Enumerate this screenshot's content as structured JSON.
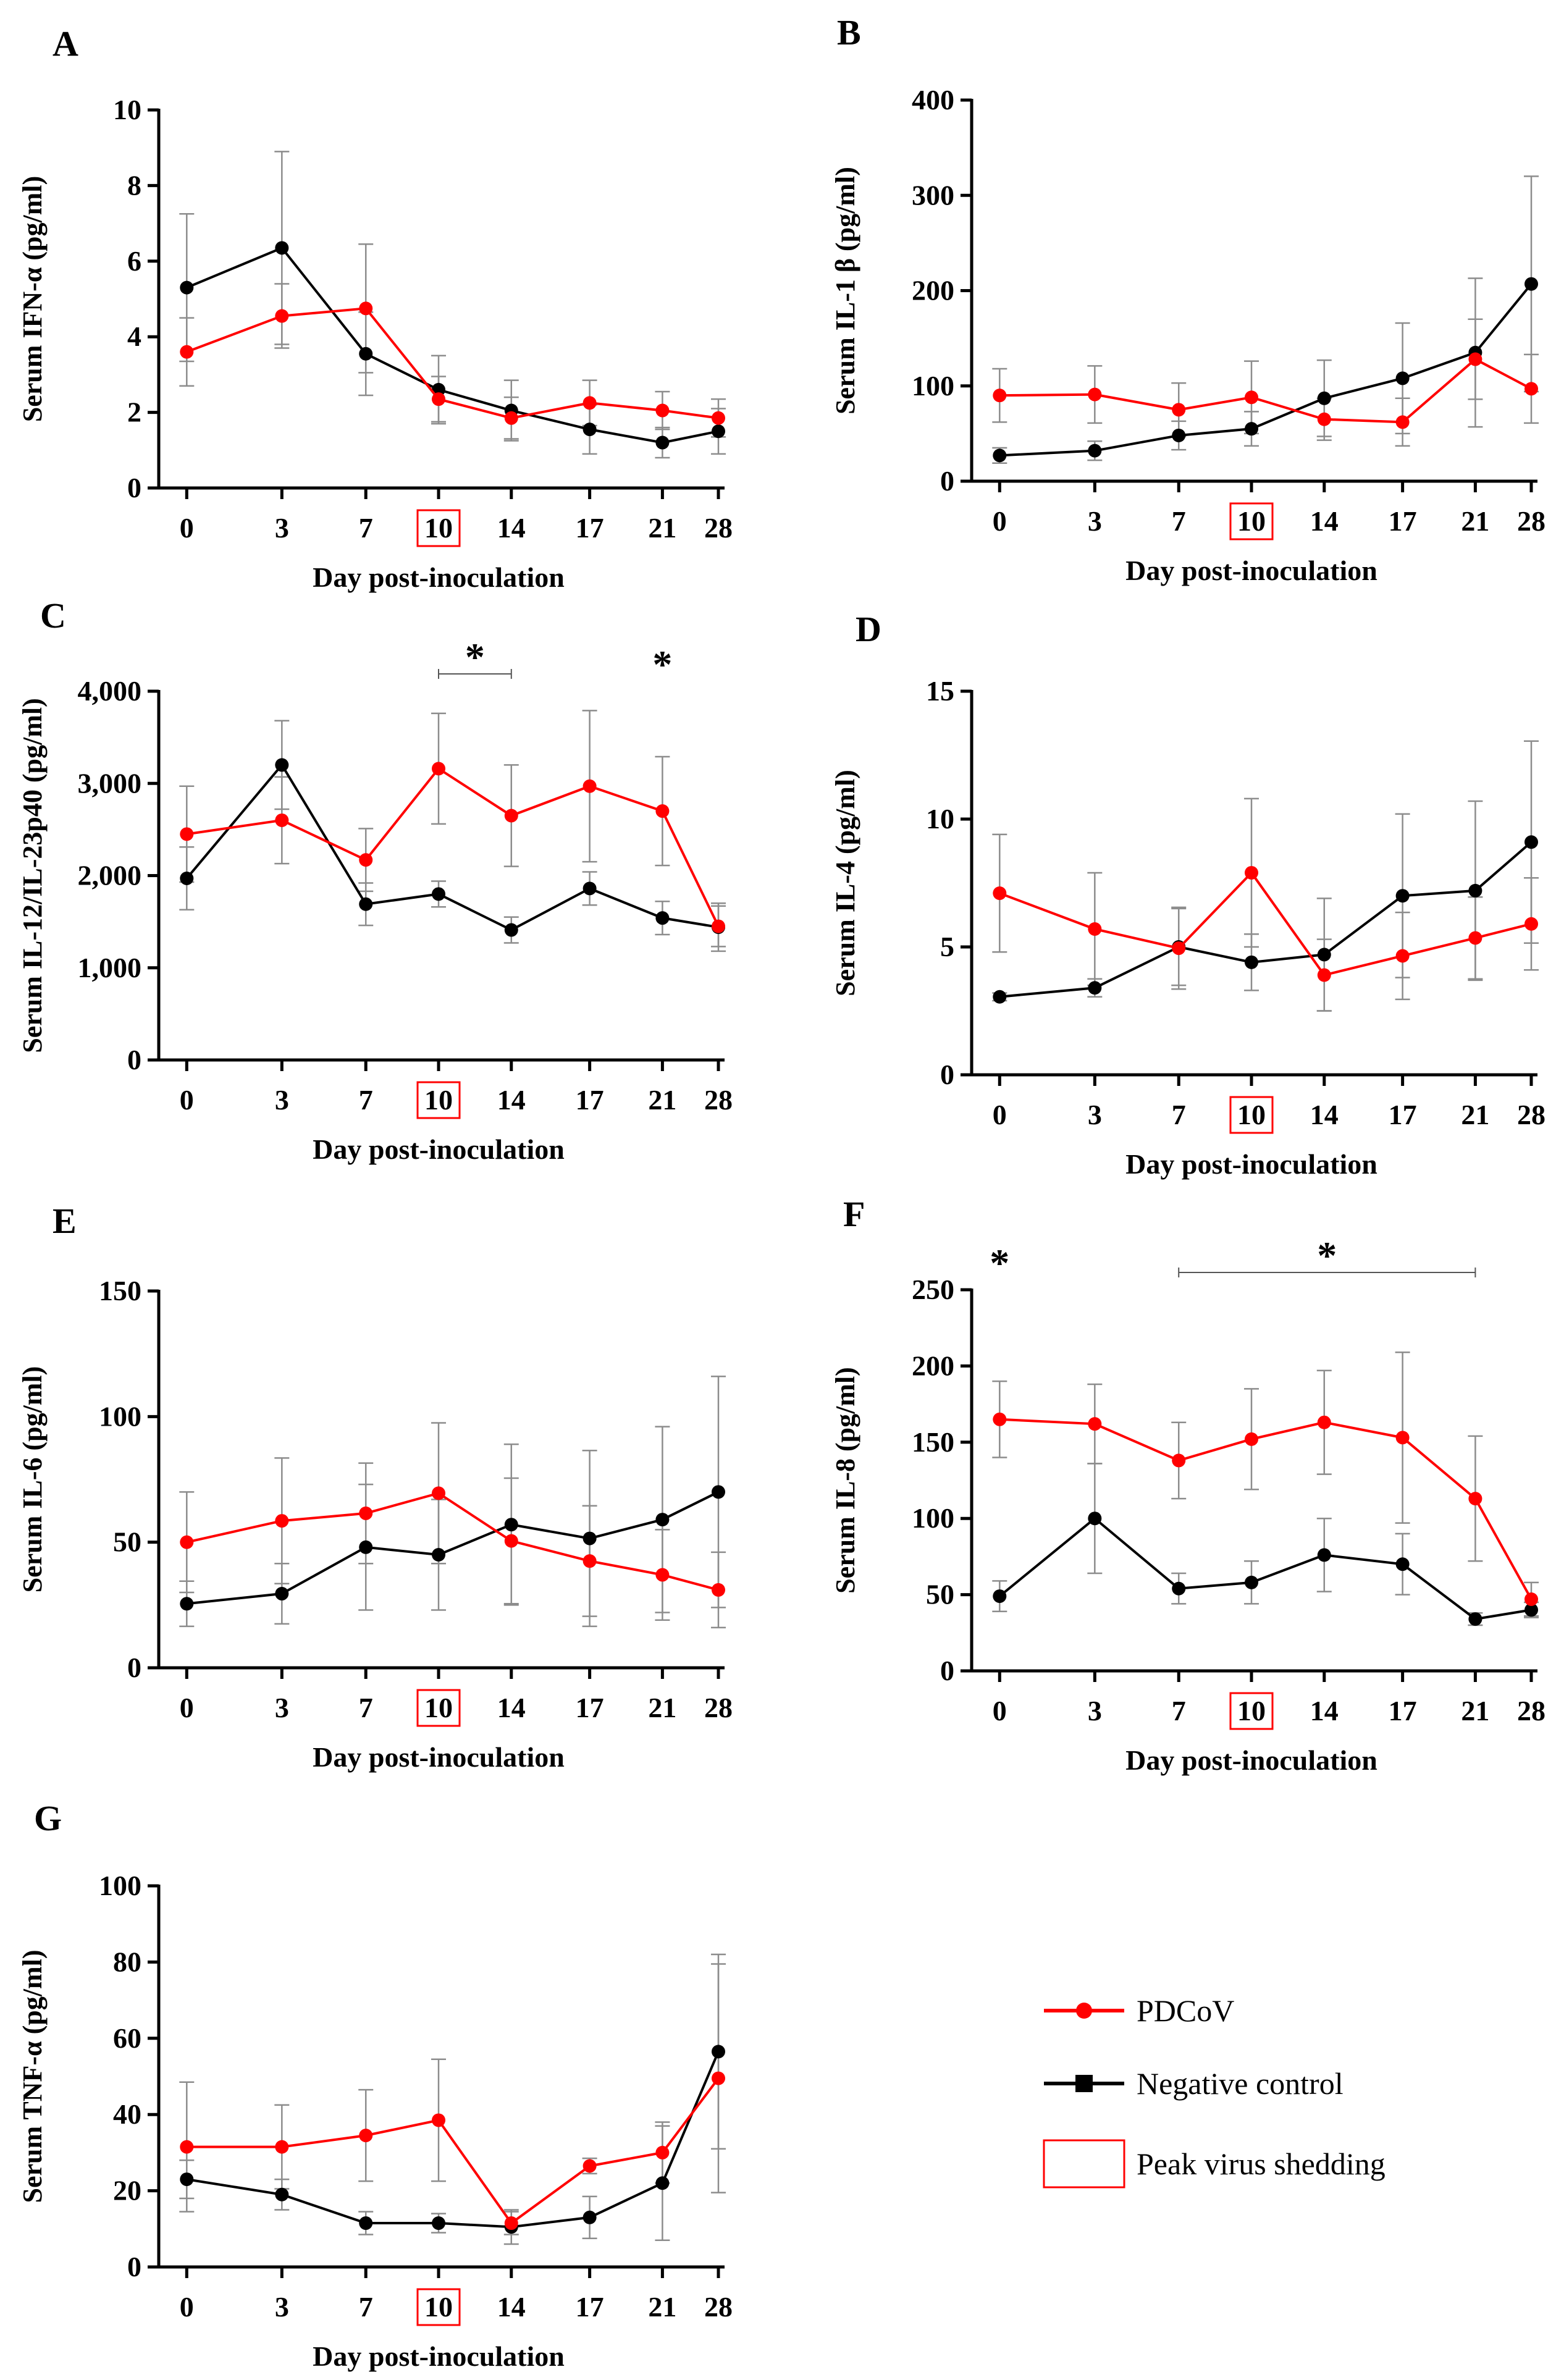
{
  "figure": {
    "colors": {
      "pdcov": "#ff0000",
      "control": "#000000",
      "errorbar": "#8c8c8c",
      "highlight": "#ff0000"
    },
    "x_label": "Day post-inoculation",
    "categories": [
      "0",
      "3",
      "7",
      "10",
      "14",
      "17",
      "21",
      "28"
    ],
    "peak_day": "10",
    "legend": [
      {
        "name": "PDCoV",
        "style": "red-circle-line"
      },
      {
        "name": "Negative control",
        "style": "black-square-line"
      },
      {
        "name": "Peak virus shedding",
        "style": "red-box"
      }
    ]
  },
  "chart_data": [
    {
      "panel": "A",
      "type": "line",
      "ylabel": "Serum IFN-α (pg/ml)",
      "ylim": [
        0,
        10
      ],
      "yticks": [
        "0",
        "2",
        "4",
        "6",
        "8",
        "10"
      ],
      "series": [
        {
          "name": "PDCoV",
          "values": [
            3.6,
            4.55,
            4.75,
            2.35,
            1.85,
            2.25,
            2.05,
            1.85
          ],
          "errors": [
            0.9,
            0.85,
            1.7,
            0.6,
            0.55,
            0.6,
            0.5,
            0.5
          ]
        },
        {
          "name": "Negative control",
          "values": [
            5.3,
            6.35,
            3.55,
            2.6,
            2.05,
            1.55,
            1.2,
            1.5
          ],
          "errors": [
            1.95,
            2.55,
            1.1,
            0.9,
            0.8,
            0.65,
            0.4,
            0.6
          ]
        }
      ],
      "significance": []
    },
    {
      "panel": "B",
      "type": "line",
      "ylabel": "Serum IL-1 β (pg/ml)",
      "ylim": [
        0,
        400
      ],
      "yticks": [
        "0",
        "100",
        "200",
        "300",
        "400"
      ],
      "series": [
        {
          "name": "PDCoV",
          "values": [
            90,
            91,
            75,
            88,
            65,
            62,
            128,
            97
          ],
          "errors": [
            28,
            30,
            28,
            38,
            22,
            25,
            42,
            36
          ]
        },
        {
          "name": "Negative control",
          "values": [
            27,
            32,
            48,
            55,
            87,
            108,
            135,
            207
          ],
          "errors": [
            8,
            10,
            15,
            18,
            40,
            58,
            78,
            113
          ]
        }
      ],
      "significance": []
    },
    {
      "panel": "C",
      "type": "line",
      "ylabel": "Serum IL-12/IL-23p40 (pg/ml)",
      "ylim": [
        0,
        4000
      ],
      "yticks": [
        "0",
        "1,000",
        "2,000",
        "3,000",
        "4,000"
      ],
      "series": [
        {
          "name": "PDCoV",
          "values": [
            2450,
            2600,
            2170,
            3160,
            2650,
            2970,
            2700,
            1450
          ],
          "errors": [
            520,
            470,
            340,
            600,
            550,
            820,
            590,
            220
          ]
        },
        {
          "name": "Negative control",
          "values": [
            1970,
            3200,
            1690,
            1800,
            1410,
            1860,
            1540,
            1440
          ],
          "errors": [
            340,
            480,
            230,
            140,
            140,
            180,
            180,
            260
          ]
        }
      ],
      "significance": [
        {
          "label": "*",
          "from": "10",
          "to": "14"
        },
        {
          "label": "*",
          "at": "21"
        }
      ]
    },
    {
      "panel": "D",
      "type": "line",
      "ylabel": "Serum IL-4 (pg/ml)",
      "ylim": [
        0,
        15
      ],
      "yticks": [
        "0",
        "5",
        "10",
        "15"
      ],
      "series": [
        {
          "name": "PDCoV",
          "values": [
            7.1,
            5.7,
            4.95,
            7.9,
            3.9,
            4.65,
            5.35,
            5.9
          ],
          "errors": [
            2.3,
            2.2,
            1.6,
            2.9,
            1.4,
            1.7,
            1.6,
            1.8
          ]
        },
        {
          "name": "Negative control",
          "values": [
            3.05,
            3.4,
            5.0,
            4.4,
            4.7,
            7.0,
            7.2,
            9.1
          ],
          "errors": [
            0.15,
            0.35,
            1.5,
            1.1,
            2.2,
            3.2,
            3.5,
            3.95
          ]
        }
      ],
      "significance": []
    },
    {
      "panel": "E",
      "type": "line",
      "ylabel": "Serum IL-6 (pg/ml)",
      "ylim": [
        0,
        150
      ],
      "yticks": [
        "0",
        "50",
        "100",
        "150"
      ],
      "series": [
        {
          "name": "PDCoV",
          "values": [
            50,
            58.5,
            61.5,
            69.5,
            50.5,
            42.5,
            37,
            31
          ],
          "errors": [
            20,
            25,
            20,
            28,
            25,
            22,
            18,
            15
          ]
        },
        {
          "name": "Negative control",
          "values": [
            25.5,
            29.5,
            48,
            45,
            57,
            51.5,
            59,
            70
          ],
          "errors": [
            9,
            12,
            25,
            22,
            32,
            35,
            37,
            46
          ]
        }
      ],
      "significance": []
    },
    {
      "panel": "F",
      "type": "line",
      "ylabel": "Serum IL-8 (pg/ml)",
      "ylim": [
        0,
        250
      ],
      "yticks": [
        "0",
        "50",
        "100",
        "150",
        "200",
        "250"
      ],
      "series": [
        {
          "name": "PDCoV",
          "values": [
            165,
            162,
            138,
            152,
            163,
            153,
            113,
            47
          ],
          "errors": [
            25,
            26,
            25,
            33,
            34,
            56,
            41,
            11
          ]
        },
        {
          "name": "Negative control",
          "values": [
            49,
            100,
            54,
            58,
            76,
            70,
            34,
            40
          ],
          "errors": [
            10,
            36,
            10,
            14,
            24,
            20,
            4,
            5
          ]
        }
      ],
      "significance": [
        {
          "label": "*",
          "at": "0"
        },
        {
          "label": "*",
          "from": "7",
          "to": "21"
        }
      ]
    },
    {
      "panel": "G",
      "type": "line",
      "ylabel": "Serum TNF-α (pg/ml)",
      "ylim": [
        0,
        100
      ],
      "yticks": [
        "0",
        "20",
        "40",
        "60",
        "80",
        "100"
      ],
      "series": [
        {
          "name": "PDCoV",
          "values": [
            31.5,
            31.5,
            34.5,
            38.5,
            11.5,
            26.5,
            30,
            49.5
          ],
          "errors": [
            17,
            11,
            12,
            16,
            3,
            2,
            8,
            30
          ]
        },
        {
          "name": "Negative control",
          "values": [
            23,
            19,
            11.5,
            11.5,
            10.5,
            13,
            22,
            56.5
          ],
          "errors": [
            5,
            4,
            3,
            2.5,
            4.5,
            5.5,
            15,
            25.5
          ]
        }
      ],
      "significance": []
    }
  ]
}
